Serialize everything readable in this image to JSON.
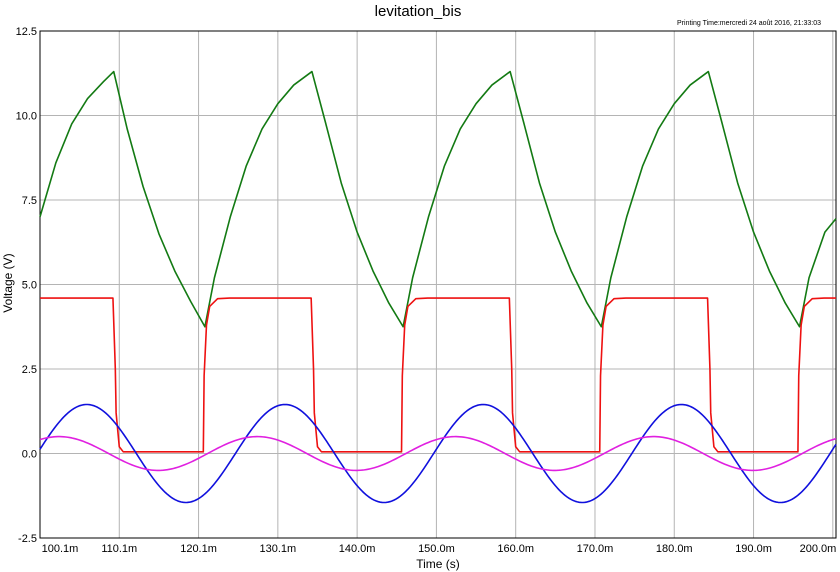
{
  "chart_data": {
    "type": "line",
    "title": "levitation_bis",
    "printing_time": "Printing Time:mercredi 24 août 2016, 21:33:03",
    "xlabel": "Time (s)",
    "ylabel": "Voltage (V)",
    "xlim": [
      0.1001,
      0.2005
    ],
    "ylim": [
      -2.5,
      12.5
    ],
    "x_ticks": [
      0.1001,
      0.1101,
      0.1201,
      0.1301,
      0.1401,
      0.1501,
      0.1601,
      0.1701,
      0.1801,
      0.1901,
      0.2001
    ],
    "x_tick_labels": [
      "100.1m",
      "110.1m",
      "120.1m",
      "130.1m",
      "140.0m",
      "150.0m",
      "160.0m",
      "170.0m",
      "180.0m",
      "190.0m",
      "200.0m"
    ],
    "y_ticks": [
      -2.5,
      0.0,
      2.5,
      5.0,
      7.5,
      10.0,
      12.5
    ],
    "y_tick_labels": [
      "-2.5",
      "0.0",
      "2.5",
      "5.0",
      "7.5",
      "10.0",
      "12.5"
    ],
    "grid": true,
    "period": 0.025,
    "colors": {
      "green": "#137a13",
      "red": "#ee1111",
      "blue": "#1010dd",
      "magenta": "#e020e0",
      "grid": "#b4b4b4"
    },
    "series": [
      {
        "color": "#137a13",
        "description": "sawtooth-like: exponential charge 3.75->11.3 V, exponential decay 11.3->3.75 V",
        "x": [
          0.1001,
          0.1021,
          0.1041,
          0.1061,
          0.1081,
          0.1094,
          0.1111,
          0.1131,
          0.1151,
          0.1171,
          0.1191,
          0.1209,
          0.1221,
          0.1241,
          0.1261,
          0.1281,
          0.1301,
          0.1321,
          0.1344,
          0.1361,
          0.1381,
          0.1401,
          0.1421,
          0.1441,
          0.1459,
          0.1471,
          0.1491,
          0.1511,
          0.1531,
          0.1551,
          0.1571,
          0.1594,
          0.1611,
          0.1631,
          0.1651,
          0.1671,
          0.1691,
          0.1709,
          0.1721,
          0.1741,
          0.1761,
          0.1781,
          0.1801,
          0.1821,
          0.1844,
          0.1861,
          0.1881,
          0.1901,
          0.1921,
          0.1941,
          0.1959,
          0.1971,
          0.1991,
          0.2005
        ],
        "y": [
          7.0,
          8.6,
          9.75,
          10.5,
          11.0,
          11.3,
          9.6,
          7.9,
          6.5,
          5.4,
          4.5,
          3.75,
          5.2,
          7.0,
          8.5,
          9.6,
          10.35,
          10.9,
          11.3,
          9.8,
          8.0,
          6.55,
          5.4,
          4.45,
          3.75,
          5.2,
          7.0,
          8.5,
          9.6,
          10.35,
          10.9,
          11.3,
          9.8,
          8.0,
          6.55,
          5.4,
          4.45,
          3.75,
          5.2,
          7.0,
          8.5,
          9.6,
          10.35,
          10.9,
          11.3,
          9.8,
          8.0,
          6.55,
          5.4,
          4.45,
          3.75,
          5.2,
          6.55,
          6.95
        ]
      },
      {
        "color": "#ee1111",
        "description": "square wave 4.6 V / 0.05 V",
        "x": [
          0.1001,
          0.1093,
          0.1096,
          0.1097,
          0.1101,
          0.1106,
          0.1207,
          0.1208,
          0.1211,
          0.1215,
          0.1225,
          0.124,
          0.1343,
          0.1346,
          0.1347,
          0.1351,
          0.1356,
          0.1457,
          0.1458,
          0.1461,
          0.1465,
          0.1475,
          0.149,
          0.1593,
          0.1596,
          0.1597,
          0.1601,
          0.1606,
          0.1707,
          0.1708,
          0.1711,
          0.1715,
          0.1725,
          0.174,
          0.1843,
          0.1846,
          0.1847,
          0.1851,
          0.1856,
          0.1957,
          0.1958,
          0.1961,
          0.1965,
          0.1975,
          0.199,
          0.2005
        ],
        "y": [
          4.6,
          4.6,
          2.5,
          1.2,
          0.2,
          0.05,
          0.05,
          2.3,
          3.8,
          4.35,
          4.58,
          4.6,
          4.6,
          2.5,
          1.2,
          0.2,
          0.05,
          0.05,
          2.3,
          3.8,
          4.35,
          4.58,
          4.6,
          4.6,
          2.5,
          1.2,
          0.2,
          0.05,
          0.05,
          2.3,
          3.8,
          4.35,
          4.58,
          4.6,
          4.6,
          2.5,
          1.2,
          0.2,
          0.05,
          0.05,
          2.3,
          3.8,
          4.35,
          4.58,
          4.6,
          4.6
        ]
      },
      {
        "color": "#1010dd",
        "description": "sine, amplitude 1.45 V, period 25 ms, peak at 106.0 ms",
        "amplitude": 1.45,
        "peak_time": 0.106
      },
      {
        "color": "#e020e0",
        "description": "sine, amplitude 0.5 V, period 25 ms, peak at 102.5 ms",
        "amplitude": 0.5,
        "peak_time": 0.1025
      }
    ]
  }
}
